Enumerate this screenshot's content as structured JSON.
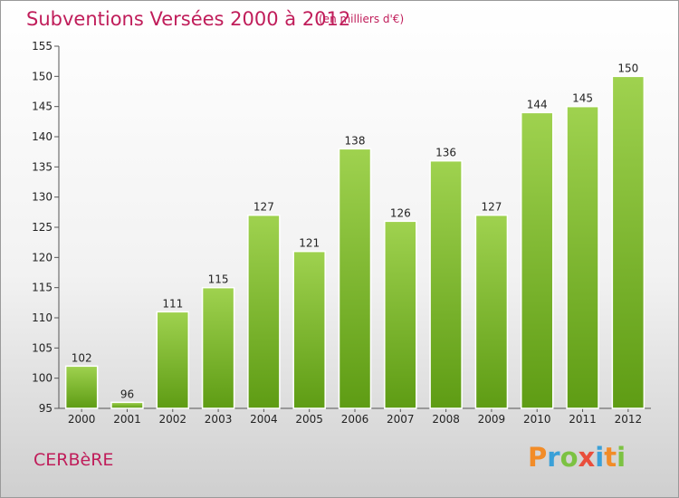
{
  "header": {
    "title": "Subventions Versées 2000 à 2012",
    "units": "(en milliers d'€)"
  },
  "footer": {
    "city": "CERBèRE",
    "brand": "Proxiti"
  },
  "colors": {
    "title": "#c01d5a",
    "bar_top": "#9fd24f",
    "bar_bottom": "#5e9c14",
    "logo_letters": [
      "#f28c28",
      "#3aa0d8",
      "#7cc242",
      "#e94e3c",
      "#3aa0d8",
      "#f28c28",
      "#7cc242"
    ]
  },
  "chart_data": {
    "type": "bar",
    "title": "Subventions Versées 2000 à 2012",
    "subtitle": "(en milliers d'€)",
    "xlabel": "",
    "ylabel": "",
    "categories": [
      "2000",
      "2001",
      "2002",
      "2003",
      "2004",
      "2005",
      "2006",
      "2007",
      "2008",
      "2009",
      "2010",
      "2011",
      "2012"
    ],
    "values": [
      102,
      96,
      111,
      115,
      127,
      121,
      138,
      126,
      136,
      127,
      144,
      145,
      150
    ],
    "ylim": [
      95,
      155
    ],
    "yticks": [
      95,
      100,
      105,
      110,
      115,
      120,
      125,
      130,
      135,
      140,
      145,
      150,
      155
    ],
    "grid": false,
    "legend": "none",
    "data_labels": true
  }
}
